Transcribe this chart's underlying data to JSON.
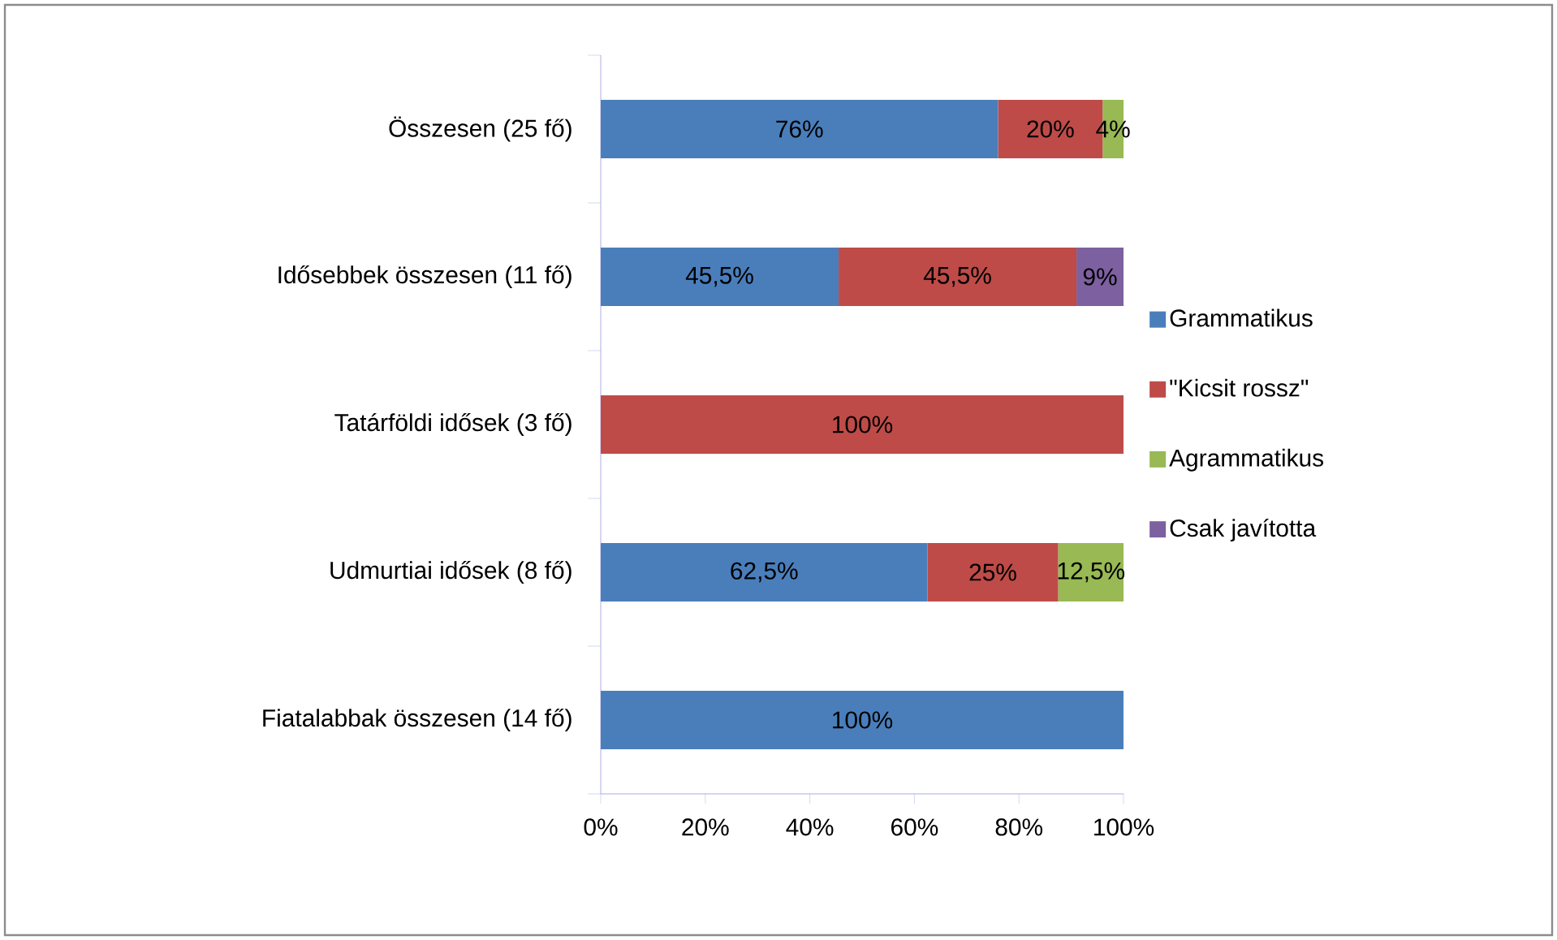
{
  "chart_data": {
    "type": "bar",
    "orientation": "horizontal",
    "stacked": true,
    "categories": [
      "Összesen (25 fő)",
      "Idősebbek összesen (11 fő)",
      "Tatárföldi idősek (3 fő)",
      "Udmurtiai idősek (8 fő)",
      "Fiatalabbak összesen (14 fő)"
    ],
    "series": [
      {
        "name": "Grammatikus",
        "color": "#4a7ebb",
        "values": [
          76,
          45.5,
          null,
          62.5,
          100
        ],
        "value_labels": [
          "76%",
          "45,5%",
          null,
          "62,5%",
          "100%"
        ]
      },
      {
        "name": "\"Kicsit rossz\"",
        "color": "#be4b48",
        "values": [
          20,
          45.5,
          100,
          25,
          null
        ],
        "value_labels": [
          "20%",
          "45,5%",
          "100%",
          "25%",
          null
        ]
      },
      {
        "name": "Agrammatikus",
        "color": "#98b954",
        "values": [
          4,
          null,
          null,
          12.5,
          null
        ],
        "value_labels": [
          "4%",
          null,
          null,
          "12,5%",
          null
        ]
      },
      {
        "name": "Csak javította",
        "color": "#7d60a0",
        "values": [
          null,
          9,
          null,
          null,
          null
        ],
        "value_labels": [
          null,
          "9%",
          null,
          null,
          null
        ]
      }
    ],
    "xlim": [
      0,
      100
    ],
    "xticks": [
      {
        "value": 0,
        "label": "0%"
      },
      {
        "value": 20,
        "label": "20%"
      },
      {
        "value": 40,
        "label": "40%"
      },
      {
        "value": 60,
        "label": "60%"
      },
      {
        "value": 80,
        "label": "80%"
      },
      {
        "value": 100,
        "label": "100%"
      }
    ],
    "legend": "right"
  }
}
